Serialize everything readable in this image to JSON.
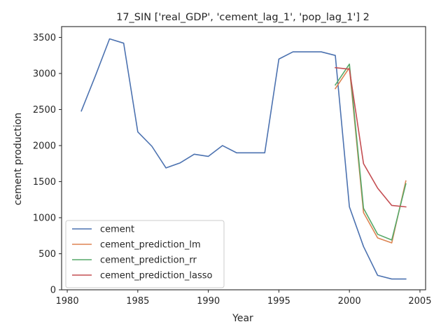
{
  "chart_data": {
    "type": "line",
    "title": "17_SIN ['real_GDP', 'cement_lag_1', 'pop_lag_1'] 2",
    "xlabel": "Year",
    "ylabel": "cement production",
    "xlim": [
      1979.6,
      2005.4
    ],
    "ylim": [
      0,
      3650
    ],
    "xticks": [
      1980,
      1985,
      1990,
      1995,
      2000,
      2005
    ],
    "yticks": [
      0,
      500,
      1000,
      1500,
      2000,
      2500,
      3000,
      3500
    ],
    "grid": false,
    "legend_position": "lower-left",
    "series": [
      {
        "name": "cement",
        "color": "#4c72b0",
        "x": [
          1981,
          1982,
          1983,
          1984,
          1985,
          1986,
          1987,
          1988,
          1989,
          1990,
          1991,
          1992,
          1993,
          1994,
          1995,
          1996,
          1997,
          1998,
          1999,
          2000,
          2001,
          2002,
          2003,
          2004
        ],
        "y": [
          2480,
          2970,
          3480,
          3420,
          2190,
          1990,
          1690,
          1760,
          1880,
          1850,
          2000,
          1900,
          1900,
          1900,
          3200,
          3300,
          3300,
          3300,
          3250,
          1150,
          600,
          200,
          150,
          150
        ]
      },
      {
        "name": "cement_prediction_lm",
        "color": "#dd8452",
        "x": [
          1999,
          2000,
          2001,
          2002,
          2003,
          2004
        ],
        "y": [
          2790,
          3080,
          1070,
          720,
          650,
          1510
        ]
      },
      {
        "name": "cement_prediction_rr",
        "color": "#55a868",
        "x": [
          1999,
          2000,
          2001,
          2002,
          2003,
          2004
        ],
        "y": [
          2840,
          3130,
          1130,
          770,
          690,
          1470
        ]
      },
      {
        "name": "cement_prediction_lasso",
        "color": "#c44e52",
        "x": [
          1999,
          2000,
          2001,
          2002,
          2003,
          2004
        ],
        "y": [
          3080,
          3060,
          1750,
          1410,
          1170,
          1150
        ]
      }
    ]
  }
}
